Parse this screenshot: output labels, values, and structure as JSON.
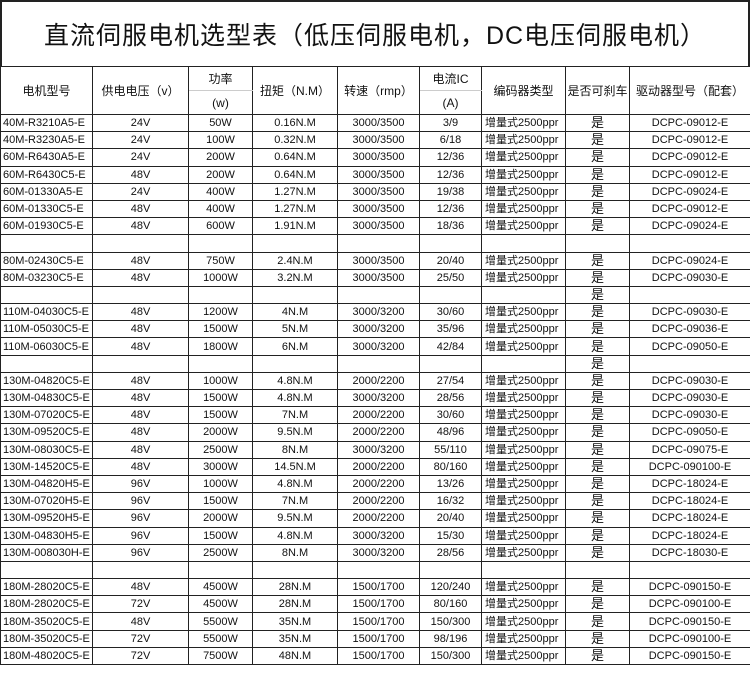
{
  "title": "直流伺服电机选型表（低压伺服电机，DC电压伺服电机）",
  "headers": {
    "model": "电机型号",
    "voltage": "供电电压（v）",
    "power": "功率",
    "power_unit": "(w)",
    "torque": "扭矩（N.M）",
    "speed": "转速（rmp）",
    "current": "电流IC",
    "current_unit": "(A)",
    "encoder": "编码器类型",
    "brake": "是否可刹车",
    "driver": "驱动器型号（配套）"
  },
  "rows": [
    [
      "40M-R3210A5-E",
      "24V",
      "50W",
      "0.16N.M",
      "3000/3500",
      "3/9",
      "增量式2500ppr",
      "是",
      "DCPC-09012-E"
    ],
    [
      "40M-R3230A5-E",
      "24V",
      "100W",
      "0.32N.M",
      "3000/3500",
      "6/18",
      "增量式2500ppr",
      "是",
      "DCPC-09012-E"
    ],
    [
      "60M-R6430A5-E",
      "24V",
      "200W",
      "0.64N.M",
      "3000/3500",
      "12/36",
      "增量式2500ppr",
      "是",
      "DCPC-09012-E"
    ],
    [
      "60M-R6430C5-E",
      "48V",
      "200W",
      "0.64N.M",
      "3000/3500",
      "12/36",
      "增量式2500ppr",
      "是",
      "DCPC-09012-E"
    ],
    [
      "60M-01330A5-E",
      "24V",
      "400W",
      "1.27N.M",
      "3000/3500",
      "19/38",
      "增量式2500ppr",
      "是",
      "DCPC-09024-E"
    ],
    [
      "60M-01330C5-E",
      "48V",
      "400W",
      "1.27N.M",
      "3000/3500",
      "12/36",
      "增量式2500ppr",
      "是",
      "DCPC-09012-E"
    ],
    [
      "60M-01930C5-E",
      "48V",
      "600W",
      "1.91N.M",
      "3000/3500",
      "18/36",
      "增量式2500ppr",
      "是",
      "DCPC-09024-E"
    ],
    [
      "",
      "",
      "",
      "",
      "",
      "",
      "",
      "",
      ""
    ],
    [
      "80M-02430C5-E",
      "48V",
      "750W",
      "2.4N.M",
      "3000/3500",
      "20/40",
      "增量式2500ppr",
      "是",
      "DCPC-09024-E"
    ],
    [
      "80M-03230C5-E",
      "48V",
      "1000W",
      "3.2N.M",
      "3000/3500",
      "25/50",
      "增量式2500ppr",
      "是",
      "DCPC-09030-E"
    ],
    [
      "",
      "",
      "",
      "",
      "",
      "",
      "",
      "是",
      ""
    ],
    [
      "110M-04030C5-E",
      "48V",
      "1200W",
      "4N.M",
      "3000/3200",
      "30/60",
      "增量式2500ppr",
      "是",
      "DCPC-09030-E"
    ],
    [
      "110M-05030C5-E",
      "48V",
      "1500W",
      "5N.M",
      "3000/3200",
      "35/96",
      "增量式2500ppr",
      "是",
      "DCPC-09036-E"
    ],
    [
      "110M-06030C5-E",
      "48V",
      "1800W",
      "6N.M",
      "3000/3200",
      "42/84",
      "增量式2500ppr",
      "是",
      "DCPC-09050-E"
    ],
    [
      "",
      "",
      "",
      "",
      "",
      "",
      "",
      "是",
      ""
    ],
    [
      "130M-04820C5-E",
      "48V",
      "1000W",
      "4.8N.M",
      "2000/2200",
      "27/54",
      "增量式2500ppr",
      "是",
      "DCPC-09030-E"
    ],
    [
      "130M-04830C5-E",
      "48V",
      "1500W",
      "4.8N.M",
      "3000/3200",
      "28/56",
      "增量式2500ppr",
      "是",
      "DCPC-09030-E"
    ],
    [
      "130M-07020C5-E",
      "48V",
      "1500W",
      "7N.M",
      "2000/2200",
      "30/60",
      "增量式2500ppr",
      "是",
      "DCPC-09030-E"
    ],
    [
      "130M-09520C5-E",
      "48V",
      "2000W",
      "9.5N.M",
      "2000/2200",
      "48/96",
      "增量式2500ppr",
      "是",
      "DCPC-09050-E"
    ],
    [
      "130M-08030C5-E",
      "48V",
      "2500W",
      "8N.M",
      "3000/3200",
      "55/110",
      "增量式2500ppr",
      "是",
      "DCPC-09075-E"
    ],
    [
      "130M-14520C5-E",
      "48V",
      "3000W",
      "14.5N.M",
      "2000/2200",
      "80/160",
      "增量式2500ppr",
      "是",
      "DCPC-090100-E"
    ],
    [
      "130M-04820H5-E",
      "96V",
      "1000W",
      "4.8N.M",
      "2000/2200",
      "13/26",
      "增量式2500ppr",
      "是",
      "DCPC-18024-E"
    ],
    [
      "130M-07020H5-E",
      "96V",
      "1500W",
      "7N.M",
      "2000/2200",
      "16/32",
      "增量式2500ppr",
      "是",
      "DCPC-18024-E"
    ],
    [
      "130M-09520H5-E",
      "96V",
      "2000W",
      "9.5N.M",
      "2000/2200",
      "20/40",
      "增量式2500ppr",
      "是",
      "DCPC-18024-E"
    ],
    [
      "130M-04830H5-E",
      "96V",
      "1500W",
      "4.8N.M",
      "3000/3200",
      "15/30",
      "增量式2500ppr",
      "是",
      "DCPC-18024-E"
    ],
    [
      "130M-008030H-E",
      "96V",
      "2500W",
      "8N.M",
      "3000/3200",
      "28/56",
      "增量式2500ppr",
      "是",
      "DCPC-18030-E"
    ],
    [
      "",
      "",
      "",
      "",
      "",
      "",
      "",
      "",
      ""
    ],
    [
      "180M-28020C5-E",
      "48V",
      "4500W",
      "28N.M",
      "1500/1700",
      "120/240",
      "增量式2500ppr",
      "是",
      "DCPC-090150-E"
    ],
    [
      "180M-28020C5-E",
      "72V",
      "4500W",
      "28N.M",
      "1500/1700",
      "80/160",
      "增量式2500ppr",
      "是",
      "DCPC-090100-E"
    ],
    [
      "180M-35020C5-E",
      "48V",
      "5500W",
      "35N.M",
      "1500/1700",
      "150/300",
      "增量式2500ppr",
      "是",
      "DCPC-090150-E"
    ],
    [
      "180M-35020C5-E",
      "72V",
      "5500W",
      "35N.M",
      "1500/1700",
      "98/196",
      "增量式2500ppr",
      "是",
      "DCPC-090100-E"
    ],
    [
      "180M-48020C5-E",
      "72V",
      "7500W",
      "48N.M",
      "1500/1700",
      "150/300",
      "增量式2500ppr",
      "是",
      "DCPC-090150-E"
    ]
  ]
}
